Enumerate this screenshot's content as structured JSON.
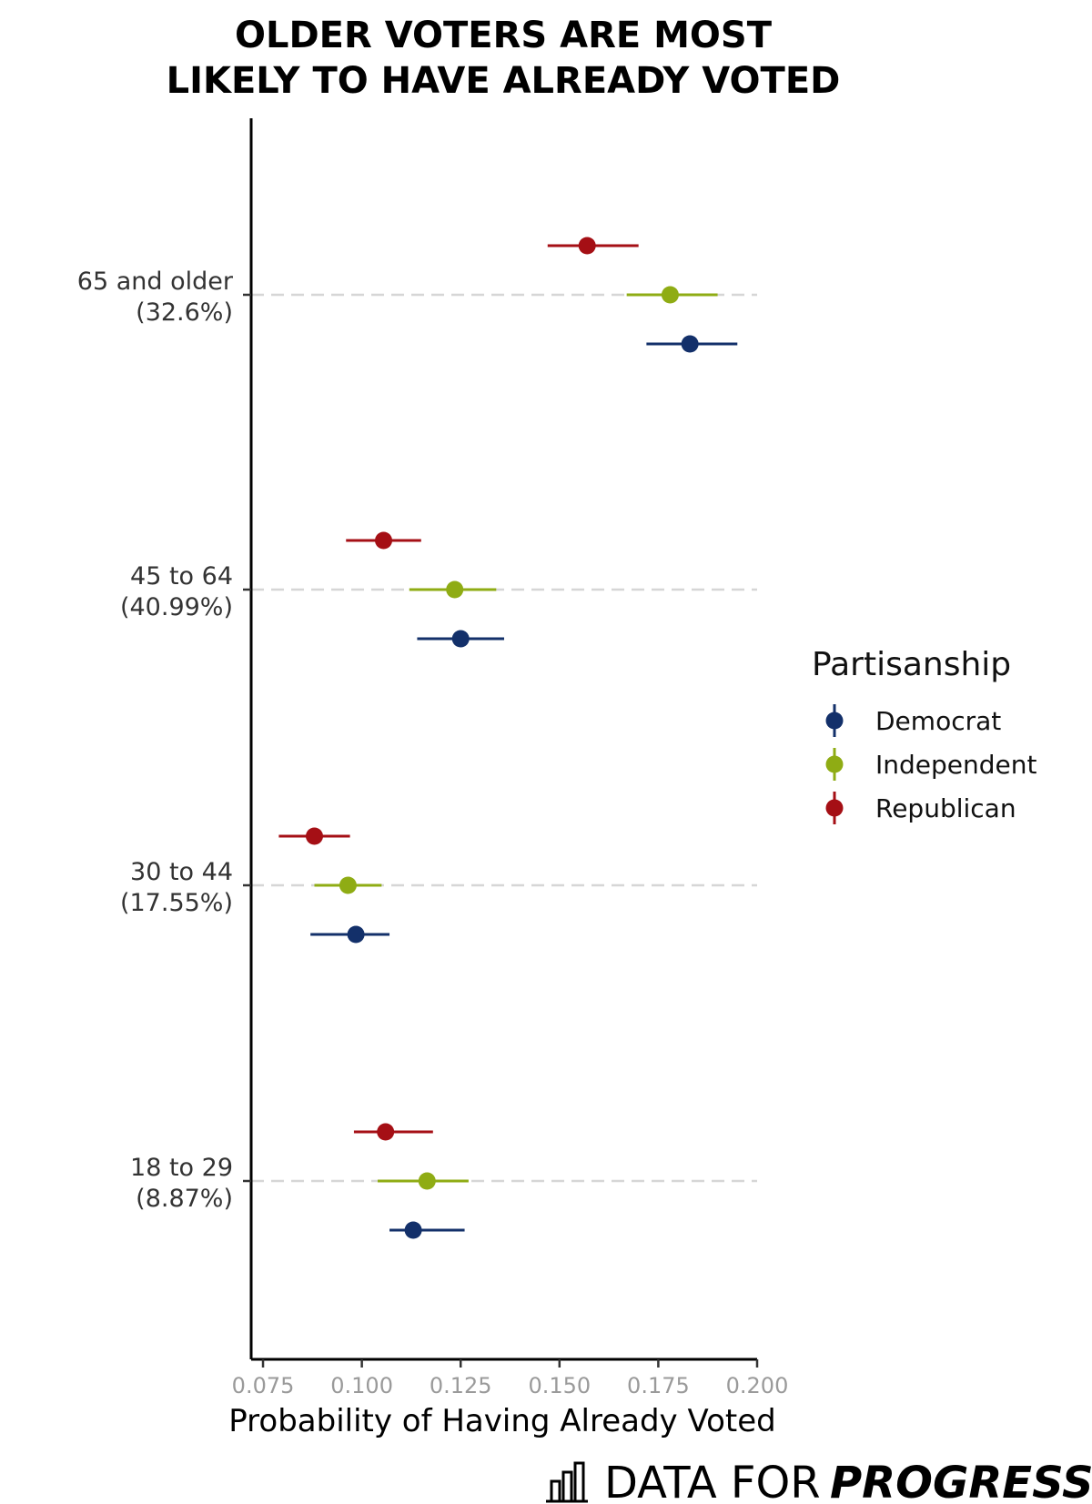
{
  "title": {
    "line1": "OLDER VOTERS ARE MOST",
    "line2": "LIKELY TO HAVE ALREADY VOTED"
  },
  "chart_data": {
    "type": "scatter",
    "subtype": "dot-with-error-bars",
    "xlabel": "Probability of Having Already Voted",
    "ylabel": "",
    "xlim": [
      0.072,
      0.2
    ],
    "x_ticks": [
      0.075,
      0.1,
      0.125,
      0.15,
      0.175,
      0.2
    ],
    "x_tick_labels": [
      "0.075",
      "0.100",
      "0.125",
      "0.150",
      "0.175",
      "0.200"
    ],
    "categories": [
      {
        "label_line1": "65 and older",
        "label_line2": "(32.6%)"
      },
      {
        "label_line1": "45 to 64",
        "label_line2": "(40.99%)"
      },
      {
        "label_line1": "30 to 44",
        "label_line2": "(17.55%)"
      },
      {
        "label_line1": "18 to 29",
        "label_line2": "(8.87%)"
      }
    ],
    "series": [
      {
        "name": "Republican",
        "color": "#a50f15",
        "values": [
          0.157,
          0.1055,
          0.088,
          0.106
        ],
        "lower": [
          0.147,
          0.096,
          0.079,
          0.098
        ],
        "upper": [
          0.17,
          0.115,
          0.097,
          0.118
        ]
      },
      {
        "name": "Independent",
        "color": "#8fac14",
        "values": [
          0.178,
          0.1235,
          0.0965,
          0.1165
        ],
        "lower": [
          0.167,
          0.112,
          0.088,
          0.104
        ],
        "upper": [
          0.19,
          0.134,
          0.105,
          0.127
        ]
      },
      {
        "name": "Democrat",
        "color": "#13306a",
        "values": [
          0.183,
          0.125,
          0.0985,
          0.113
        ],
        "lower": [
          0.172,
          0.114,
          0.087,
          0.107
        ],
        "upper": [
          0.195,
          0.136,
          0.107,
          0.126
        ]
      }
    ],
    "grid": "horizontal dashed at categories",
    "legend": {
      "title": "Partisanship",
      "placement": "right",
      "entries": [
        {
          "name": "Democrat",
          "color": "#13306a"
        },
        {
          "name": "Independent",
          "color": "#8fac14"
        },
        {
          "name": "Republican",
          "color": "#a50f15"
        }
      ]
    }
  },
  "branding": {
    "icon": "bar-chart-icon",
    "text_regular": "DATA FOR",
    "text_bold": "PROGRESS"
  }
}
